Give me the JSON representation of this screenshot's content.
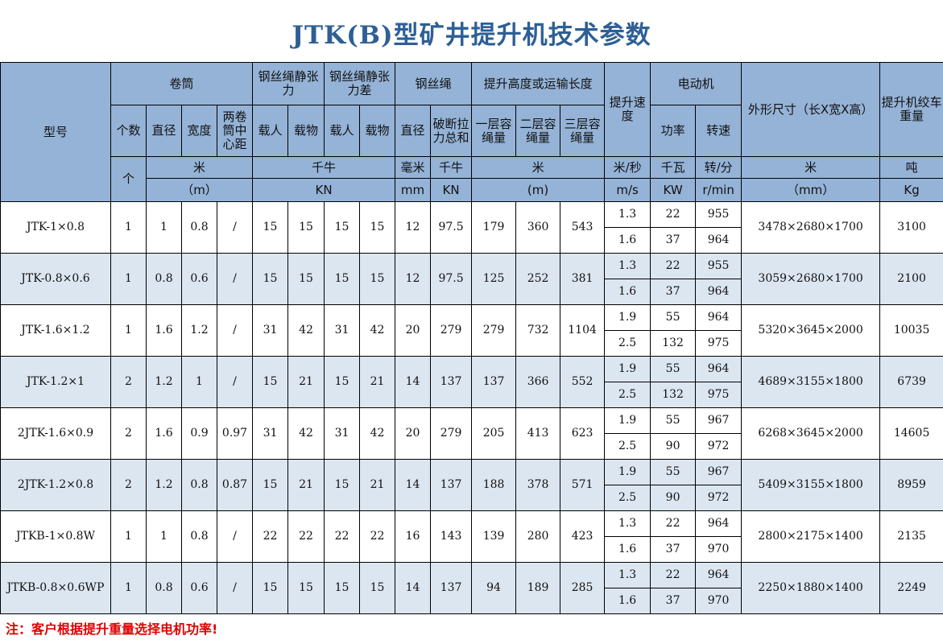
{
  "title": "JTK(B)型矿井提升机技术参数",
  "header": {
    "model": "型号",
    "drum": "卷筒",
    "rope_tension": "钢丝绳静张力",
    "rope_tension_diff": "钢丝绳静张力差",
    "rope": "钢丝绳",
    "lift_height": "提升高度或运输长度",
    "speed": "提升速度",
    "motor": "电动机",
    "dimensions": "外形尺寸（长X宽X高）",
    "weight": "提升机绞车重量",
    "count": "个数",
    "diameter": "直径",
    "width": "宽度",
    "center_dist": "两卷筒中心距",
    "person": "载人",
    "cargo": "载物",
    "rope_dia": "直径",
    "break_force": "破断拉力总和",
    "layer1": "一层容绳量",
    "layer2": "二层容绳量",
    "layer3": "三层容绳量",
    "power": "功率",
    "rpm": "转速",
    "u_ge": "个",
    "u_m_cn": "米",
    "u_m": "（m）",
    "u_kn_cn": "千牛",
    "u_kn": "KN",
    "u_mm_cn": "毫米",
    "u_mm": "mm",
    "u_kn2_cn": "千牛",
    "u_kn2": "KN",
    "u_len_cn": "米",
    "u_len": "(m)",
    "u_speed_cn": "米/秒",
    "u_speed": "m/s",
    "u_kw_cn": "千瓦",
    "u_kw": "KW",
    "u_rpm_cn": "转/分",
    "u_rpm": "r/min",
    "u_dim_cn": "米",
    "u_dim": "（mm）",
    "u_w_cn": "吨",
    "u_w": "Kg"
  },
  "rows": [
    {
      "model": "JTK-1×0.8",
      "count": "1",
      "dia": "1",
      "width": "0.8",
      "center": "/",
      "tp": "15",
      "tc": "15",
      "dp": "15",
      "dc": "15",
      "rd": "12",
      "bf": "97.5",
      "l1": "179",
      "l2": "360",
      "l3": "543",
      "sub": [
        {
          "speed": "1.3",
          "power": "22",
          "rpm": "955"
        },
        {
          "speed": "1.6",
          "power": "37",
          "rpm": "964"
        }
      ],
      "dim": "3478×2680×1700",
      "weight": "3100"
    },
    {
      "model": "JTK-0.8×0.6",
      "count": "1",
      "dia": "0.8",
      "width": "0.6",
      "center": "/",
      "tp": "15",
      "tc": "15",
      "dp": "15",
      "dc": "15",
      "rd": "12",
      "bf": "97.5",
      "l1": "125",
      "l2": "252",
      "l3": "381",
      "sub": [
        {
          "speed": "1.3",
          "power": "22",
          "rpm": "955"
        },
        {
          "speed": "1.6",
          "power": "37",
          "rpm": "964"
        }
      ],
      "dim": "3059×2680×1700",
      "weight": "2100"
    },
    {
      "model": "JTK-1.6×1.2",
      "count": "1",
      "dia": "1.6",
      "width": "1.2",
      "center": "/",
      "tp": "31",
      "tc": "42",
      "dp": "31",
      "dc": "42",
      "rd": "20",
      "bf": "279",
      "l1": "279",
      "l2": "732",
      "l3": "1104",
      "sub": [
        {
          "speed": "1.9",
          "power": "55",
          "rpm": "964"
        },
        {
          "speed": "2.5",
          "power": "132",
          "rpm": "975"
        }
      ],
      "dim": "5320×3645×2000",
      "weight": "10035"
    },
    {
      "model": "JTK-1.2×1",
      "count": "2",
      "dia": "1.2",
      "width": "1",
      "center": "/",
      "tp": "15",
      "tc": "21",
      "dp": "15",
      "dc": "21",
      "rd": "14",
      "bf": "137",
      "l1": "137",
      "l2": "366",
      "l3": "552",
      "sub": [
        {
          "speed": "1.9",
          "power": "55",
          "rpm": "964"
        },
        {
          "speed": "2.5",
          "power": "132",
          "rpm": "975"
        }
      ],
      "dim": "4689×3155×1800",
      "weight": "6739"
    },
    {
      "model": "2JTK-1.6×0.9",
      "count": "2",
      "dia": "1.6",
      "width": "0.9",
      "center": "0.97",
      "tp": "31",
      "tc": "42",
      "dp": "31",
      "dc": "42",
      "rd": "20",
      "bf": "279",
      "l1": "205",
      "l2": "413",
      "l3": "623",
      "sub": [
        {
          "speed": "1.9",
          "power": "55",
          "rpm": "967"
        },
        {
          "speed": "2.5",
          "power": "90",
          "rpm": "972"
        }
      ],
      "dim": "6268×3645×2000",
      "weight": "14605"
    },
    {
      "model": "2JTK-1.2×0.8",
      "count": "2",
      "dia": "1.2",
      "width": "0.8",
      "center": "0.87",
      "tp": "15",
      "tc": "21",
      "dp": "15",
      "dc": "21",
      "rd": "14",
      "bf": "137",
      "l1": "188",
      "l2": "378",
      "l3": "571",
      "sub": [
        {
          "speed": "1.9",
          "power": "55",
          "rpm": "967"
        },
        {
          "speed": "2.5",
          "power": "90",
          "rpm": "972"
        }
      ],
      "dim": "5409×3155×1800",
      "weight": "8959"
    },
    {
      "model": "JTKB-1×0.8W",
      "count": "1",
      "dia": "1",
      "width": "0.8",
      "center": "/",
      "tp": "22",
      "tc": "22",
      "dp": "22",
      "dc": "22",
      "rd": "16",
      "bf": "143",
      "l1": "139",
      "l2": "280",
      "l3": "423",
      "sub": [
        {
          "speed": "1.3",
          "power": "22",
          "rpm": "964"
        },
        {
          "speed": "1.6",
          "power": "37",
          "rpm": "970"
        }
      ],
      "dim": "2800×2175×1400",
      "weight": "2135"
    },
    {
      "model": "JTKB-0.8×0.6WP",
      "count": "1",
      "dia": "0.8",
      "width": "0.6",
      "center": "/",
      "tp": "15",
      "tc": "15",
      "dp": "15",
      "dc": "15",
      "rd": "14",
      "bf": "137",
      "l1": "94",
      "l2": "189",
      "l3": "285",
      "sub": [
        {
          "speed": "1.3",
          "power": "22",
          "rpm": "964"
        },
        {
          "speed": "1.6",
          "power": "37",
          "rpm": "970"
        }
      ],
      "dim": "2250×1880×1400",
      "weight": "2249"
    }
  ],
  "note": "注：客户根据提升重量选择电机功率!",
  "colors": {
    "header_bg": "#95b3d7",
    "alt_row": "#dce6f1",
    "title": "#2e5f95",
    "note": "#e00000"
  }
}
